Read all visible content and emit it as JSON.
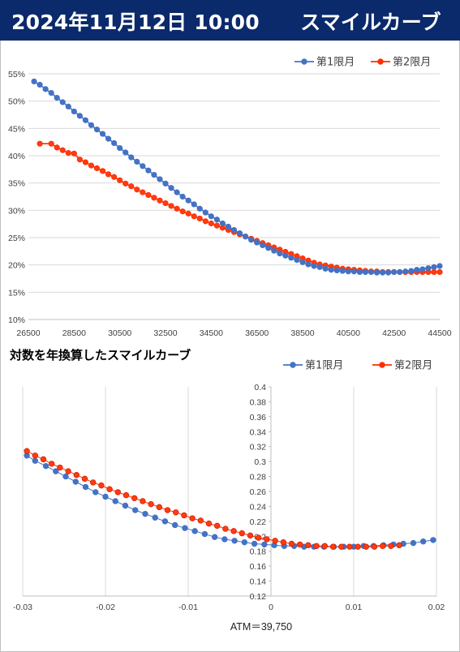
{
  "header": {
    "title": "2024年11月12日 10:00　　スマイルカーブ"
  },
  "colors": {
    "header_bg": "#0b2a6b",
    "series1": "#4472c4",
    "series2": "#ff2d00"
  },
  "chart_data": [
    {
      "type": "line",
      "xlabel": "",
      "ylabel": "",
      "xlim": [
        26500,
        44500
      ],
      "ylim": [
        0.1,
        0.55
      ],
      "xticks": [
        "26500",
        "28500",
        "30500",
        "32500",
        "34500",
        "36500",
        "38500",
        "40500",
        "42500",
        "44500"
      ],
      "yticks": [
        "10%",
        "15%",
        "20%",
        "25%",
        "30%",
        "35%",
        "40%",
        "45%",
        "50%",
        "55%"
      ],
      "grid": "horizontal",
      "legend": "top-right",
      "series": [
        {
          "name": "第1限月",
          "x": [
            26750,
            27000,
            27250,
            27500,
            27750,
            28000,
            28250,
            28500,
            28750,
            29000,
            29250,
            29500,
            29750,
            30000,
            30250,
            30500,
            30750,
            31000,
            31250,
            31500,
            31750,
            32000,
            32250,
            32500,
            32750,
            33000,
            33250,
            33500,
            33750,
            34000,
            34250,
            34500,
            34750,
            35000,
            35250,
            35500,
            35750,
            36000,
            36250,
            36500,
            36750,
            37000,
            37250,
            37500,
            37750,
            38000,
            38250,
            38500,
            38750,
            39000,
            39250,
            39500,
            39750,
            40000,
            40250,
            40500,
            40750,
            41000,
            41250,
            41500,
            41750,
            42000,
            42250,
            42500,
            42750,
            43000,
            43250,
            43500,
            43750,
            44000,
            44250,
            44500
          ],
          "y": [
            0.536,
            0.53,
            0.522,
            0.515,
            0.506,
            0.498,
            0.49,
            0.481,
            0.473,
            0.465,
            0.456,
            0.448,
            0.44,
            0.431,
            0.423,
            0.414,
            0.406,
            0.397,
            0.389,
            0.381,
            0.373,
            0.365,
            0.357,
            0.349,
            0.341,
            0.333,
            0.325,
            0.318,
            0.311,
            0.303,
            0.296,
            0.289,
            0.283,
            0.276,
            0.27,
            0.264,
            0.258,
            0.252,
            0.246,
            0.241,
            0.236,
            0.231,
            0.226,
            0.221,
            0.217,
            0.213,
            0.209,
            0.205,
            0.201,
            0.198,
            0.196,
            0.193,
            0.191,
            0.19,
            0.189,
            0.188,
            0.188,
            0.187,
            0.187,
            0.187,
            0.186,
            0.186,
            0.186,
            0.187,
            0.187,
            0.188,
            0.189,
            0.191,
            0.192,
            0.194,
            0.196,
            0.198
          ]
        },
        {
          "name": "第2限月",
          "x": [
            27000,
            27500,
            27750,
            28000,
            28250,
            28500,
            28750,
            29000,
            29250,
            29500,
            29750,
            30000,
            30250,
            30500,
            30750,
            31000,
            31250,
            31500,
            31750,
            32000,
            32250,
            32500,
            32750,
            33000,
            33250,
            33500,
            33750,
            34000,
            34250,
            34500,
            34750,
            35000,
            35250,
            35500,
            35750,
            36000,
            36250,
            36500,
            36750,
            37000,
            37250,
            37500,
            37750,
            38000,
            38250,
            38500,
            38750,
            39000,
            39250,
            39500,
            39750,
            40000,
            40250,
            40500,
            40750,
            41000,
            41250,
            41500,
            41750,
            42000,
            42250,
            42500,
            42750,
            43000,
            43250,
            43500,
            43750,
            44000,
            44250,
            44500
          ],
          "y": [
            0.422,
            0.422,
            0.415,
            0.41,
            0.405,
            0.404,
            0.393,
            0.388,
            0.382,
            0.377,
            0.372,
            0.366,
            0.361,
            0.355,
            0.349,
            0.344,
            0.338,
            0.333,
            0.328,
            0.323,
            0.318,
            0.313,
            0.308,
            0.303,
            0.298,
            0.294,
            0.289,
            0.285,
            0.28,
            0.276,
            0.272,
            0.268,
            0.264,
            0.26,
            0.256,
            0.252,
            0.248,
            0.244,
            0.24,
            0.236,
            0.232,
            0.228,
            0.224,
            0.22,
            0.216,
            0.212,
            0.208,
            0.204,
            0.201,
            0.199,
            0.197,
            0.195,
            0.193,
            0.192,
            0.191,
            0.19,
            0.189,
            0.188,
            0.188,
            0.187,
            0.187,
            0.187,
            0.187,
            0.187,
            0.187,
            0.187,
            0.187,
            0.187,
            0.187,
            0.187
          ]
        }
      ]
    },
    {
      "type": "scatter",
      "title": "対数を年換算したスマイルカーブ",
      "xlim": [
        -0.03,
        0.02
      ],
      "ylim": [
        0.12,
        0.4
      ],
      "xticks": [
        "-0.03",
        "-0.02",
        "-0.01",
        "0",
        "0.01",
        "0.02"
      ],
      "yticks": [
        "0.12",
        "0.14",
        "0.16",
        "0.18",
        "0.2",
        "0.22",
        "0.24",
        "0.26",
        "0.28",
        "0.3",
        "0.32",
        "0.34",
        "0.36",
        "0.38",
        "0.4"
      ],
      "grid": "vertical",
      "legend": "top-right",
      "annotation": "ATM＝39,750",
      "series": [
        {
          "name": "第1限月",
          "x": [
            -0.0295,
            -0.0285,
            -0.0272,
            -0.026,
            -0.0248,
            -0.0236,
            -0.0224,
            -0.0212,
            -0.02,
            -0.0188,
            -0.0176,
            -0.0164,
            -0.0152,
            -0.014,
            -0.0128,
            -0.0116,
            -0.0104,
            -0.0092,
            -0.008,
            -0.0068,
            -0.0056,
            -0.0044,
            -0.0032,
            -0.002,
            -0.0008,
            0.0004,
            0.0016,
            0.0028,
            0.004,
            0.0052,
            0.0064,
            0.0076,
            0.0088,
            0.01,
            0.0112,
            0.0124,
            0.0136,
            0.0148,
            0.016,
            0.0172,
            0.0184,
            0.0196
          ],
          "y": [
            0.308,
            0.301,
            0.294,
            0.287,
            0.28,
            0.273,
            0.266,
            0.259,
            0.253,
            0.247,
            0.241,
            0.235,
            0.23,
            0.225,
            0.22,
            0.215,
            0.211,
            0.207,
            0.203,
            0.199,
            0.196,
            0.194,
            0.192,
            0.19,
            0.189,
            0.188,
            0.187,
            0.187,
            0.186,
            0.186,
            0.186,
            0.186,
            0.186,
            0.186,
            0.187,
            0.187,
            0.188,
            0.189,
            0.19,
            0.191,
            0.193,
            0.195
          ]
        },
        {
          "name": "第2限月",
          "x": [
            -0.0295,
            -0.0285,
            -0.0275,
            -0.0265,
            -0.0255,
            -0.0245,
            -0.0235,
            -0.0225,
            -0.0215,
            -0.0205,
            -0.0195,
            -0.0185,
            -0.0175,
            -0.0165,
            -0.0155,
            -0.0145,
            -0.0135,
            -0.0125,
            -0.0115,
            -0.0105,
            -0.0095,
            -0.0085,
            -0.0075,
            -0.0065,
            -0.0055,
            -0.0045,
            -0.0035,
            -0.0025,
            -0.0015,
            -0.0005,
            0.0005,
            0.0015,
            0.0025,
            0.0035,
            0.0045,
            0.0055,
            0.0065,
            0.0075,
            0.0085,
            0.0095,
            0.0105,
            0.0115,
            0.0125,
            0.0135,
            0.0145,
            0.0155
          ],
          "y": [
            0.314,
            0.308,
            0.303,
            0.297,
            0.292,
            0.287,
            0.282,
            0.277,
            0.272,
            0.268,
            0.263,
            0.259,
            0.255,
            0.251,
            0.247,
            0.243,
            0.239,
            0.235,
            0.232,
            0.228,
            0.224,
            0.221,
            0.217,
            0.214,
            0.21,
            0.207,
            0.204,
            0.201,
            0.198,
            0.196,
            0.194,
            0.192,
            0.19,
            0.189,
            0.188,
            0.187,
            0.187,
            0.186,
            0.186,
            0.186,
            0.186,
            0.186,
            0.186,
            0.187,
            0.187,
            0.188
          ]
        }
      ]
    }
  ]
}
